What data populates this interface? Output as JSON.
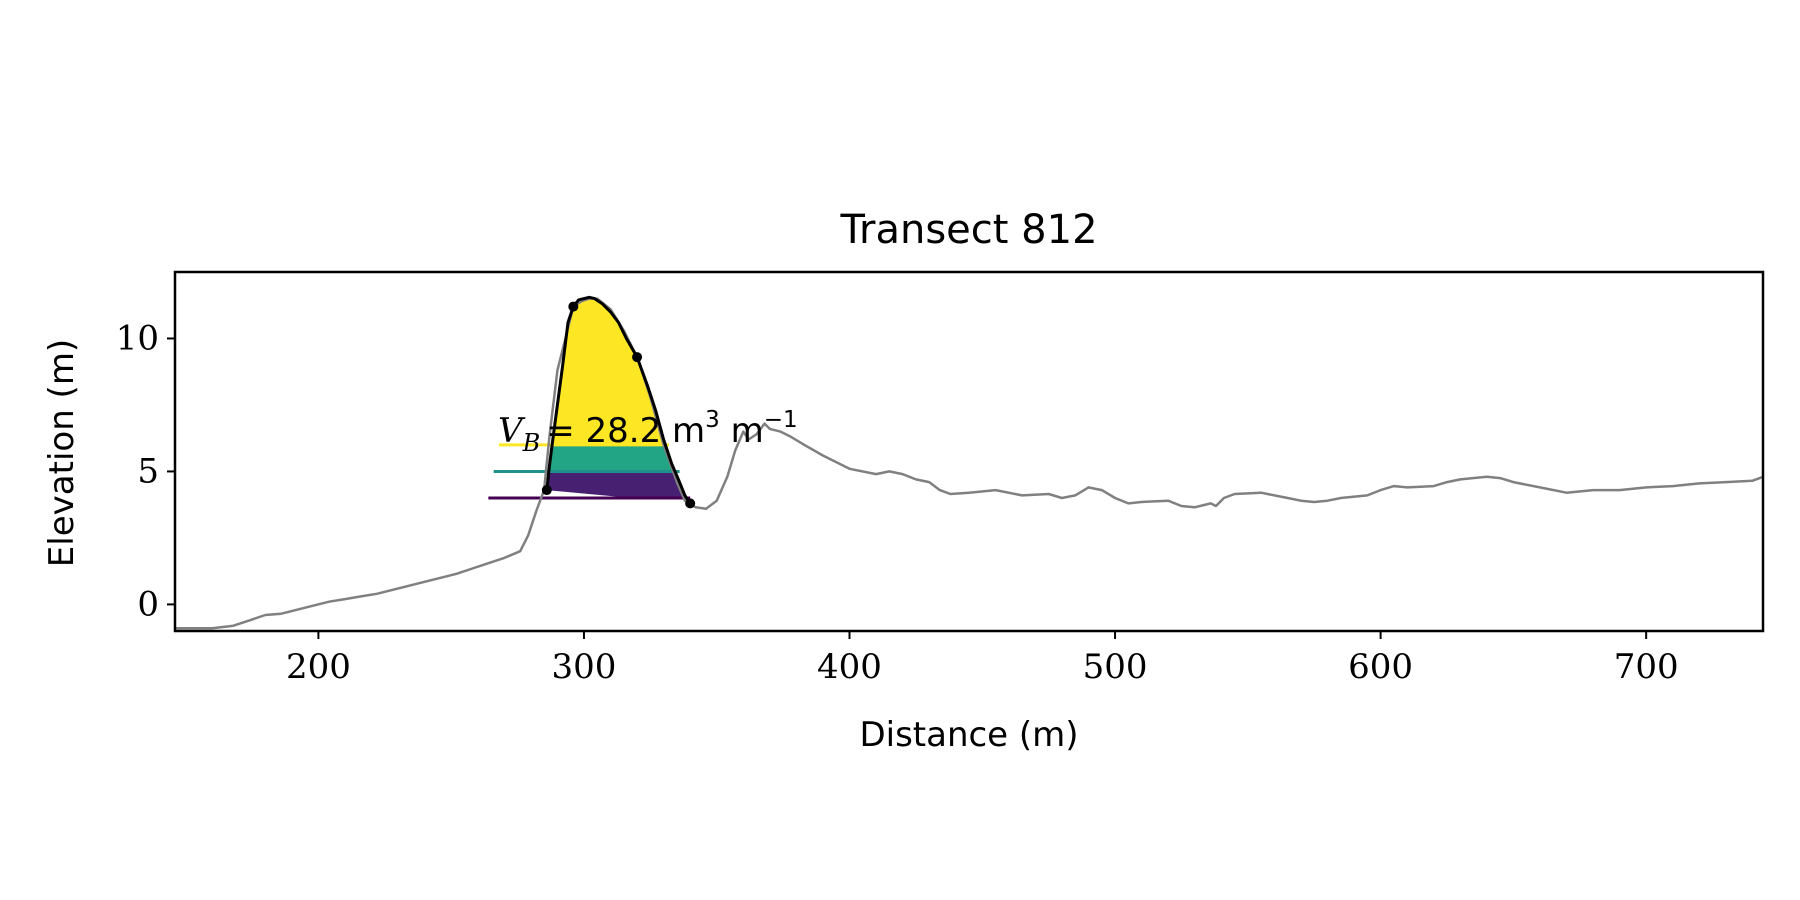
{
  "chart_data": {
    "type": "line",
    "title": "Transect 812",
    "xlabel": "Distance (m)",
    "ylabel": "Elevation (m)",
    "xlim": [
      146,
      744
    ],
    "ylim": [
      -1,
      12.5
    ],
    "xticks": [
      200,
      300,
      400,
      500,
      600,
      700
    ],
    "yticks": [
      0,
      5,
      10
    ],
    "xtick_labels": [
      "200",
      "300",
      "400",
      "500",
      "600",
      "700"
    ],
    "ytick_labels": [
      "0",
      "5",
      "10"
    ],
    "grid": false,
    "annotation": {
      "symbol": "V",
      "subscript": "B",
      "value_text": "= 28.2 m",
      "unit_superscript": "3",
      "unit_tail": " m",
      "tail_superscript": "−1"
    },
    "colors": {
      "profile": "#808080",
      "dune_outline": "#000000",
      "band_top": "#fde725",
      "band_middle": "#21a585",
      "band_bottom": "#482072",
      "level_top": "#fde725",
      "level_middle": "#21918c",
      "level_bottom": "#440154"
    },
    "levels": [
      {
        "name": "top",
        "y": 6.0,
        "x_start": 268,
        "x_end": 332
      },
      {
        "name": "middle",
        "y": 5.0,
        "x_start": 266,
        "x_end": 336
      },
      {
        "name": "bottom",
        "y": 4.0,
        "x_start": 264,
        "x_end": 340
      }
    ],
    "profile": {
      "x": [
        146,
        160,
        168,
        174,
        180,
        186,
        192,
        198,
        204,
        210,
        216,
        222,
        228,
        234,
        240,
        246,
        252,
        258,
        264,
        270,
        276,
        279,
        282,
        285,
        287,
        290,
        293,
        296,
        299,
        302,
        305,
        310,
        315,
        320,
        325,
        330,
        335,
        338,
        342,
        346,
        350,
        354,
        357,
        360,
        362,
        365,
        368,
        370,
        374,
        378,
        383,
        390,
        400,
        410,
        415,
        420,
        425,
        430,
        434,
        438,
        445,
        455,
        465,
        475,
        480,
        485,
        490,
        495,
        500,
        505,
        510,
        520,
        525,
        530,
        536,
        538,
        541,
        545,
        555,
        565,
        570,
        575,
        580,
        585,
        595,
        600,
        605,
        610,
        620,
        625,
        630,
        640,
        645,
        650,
        660,
        670,
        680,
        690,
        700,
        710,
        720,
        730,
        740,
        744
      ],
      "y": [
        -0.9,
        -0.9,
        -0.8,
        -0.6,
        -0.4,
        -0.35,
        -0.2,
        -0.05,
        0.1,
        0.2,
        0.3,
        0.4,
        0.55,
        0.7,
        0.85,
        1.0,
        1.15,
        1.35,
        1.55,
        1.75,
        2.0,
        2.6,
        3.5,
        4.3,
        6.3,
        8.8,
        10.0,
        11.2,
        11.4,
        11.5,
        11.5,
        11.1,
        10.3,
        9.3,
        7.8,
        6.0,
        4.6,
        3.9,
        3.65,
        3.6,
        3.9,
        4.8,
        5.8,
        6.5,
        6.2,
        6.4,
        6.8,
        6.6,
        6.5,
        6.3,
        6.0,
        5.6,
        5.1,
        4.9,
        5.0,
        4.9,
        4.7,
        4.6,
        4.3,
        4.15,
        4.2,
        4.3,
        4.1,
        4.15,
        4.0,
        4.1,
        4.4,
        4.3,
        4.0,
        3.8,
        3.85,
        3.9,
        3.7,
        3.65,
        3.8,
        3.7,
        4.0,
        4.15,
        4.2,
        4.0,
        3.9,
        3.85,
        3.9,
        4.0,
        4.1,
        4.3,
        4.45,
        4.4,
        4.45,
        4.6,
        4.7,
        4.8,
        4.75,
        4.6,
        4.4,
        4.2,
        4.3,
        4.3,
        4.4,
        4.45,
        4.55,
        4.6,
        4.65,
        4.8
      ]
    },
    "dune_outline": {
      "x": [
        286,
        287,
        288,
        290,
        292,
        294,
        296,
        298,
        300,
        302,
        304,
        307,
        310,
        313,
        316,
        320,
        324,
        327,
        330,
        333,
        336,
        338,
        340
      ],
      "y": [
        4.3,
        5.2,
        6.0,
        7.5,
        9.0,
        10.6,
        11.2,
        11.45,
        11.5,
        11.55,
        11.5,
        11.3,
        11.0,
        10.6,
        10.0,
        9.3,
        8.2,
        7.3,
        6.2,
        5.3,
        4.6,
        4.1,
        3.8
      ]
    },
    "key_points": [
      {
        "x": 286,
        "y": 4.3
      },
      {
        "x": 296,
        "y": 11.2
      },
      {
        "x": 320,
        "y": 9.3
      },
      {
        "x": 340,
        "y": 3.8
      }
    ]
  }
}
